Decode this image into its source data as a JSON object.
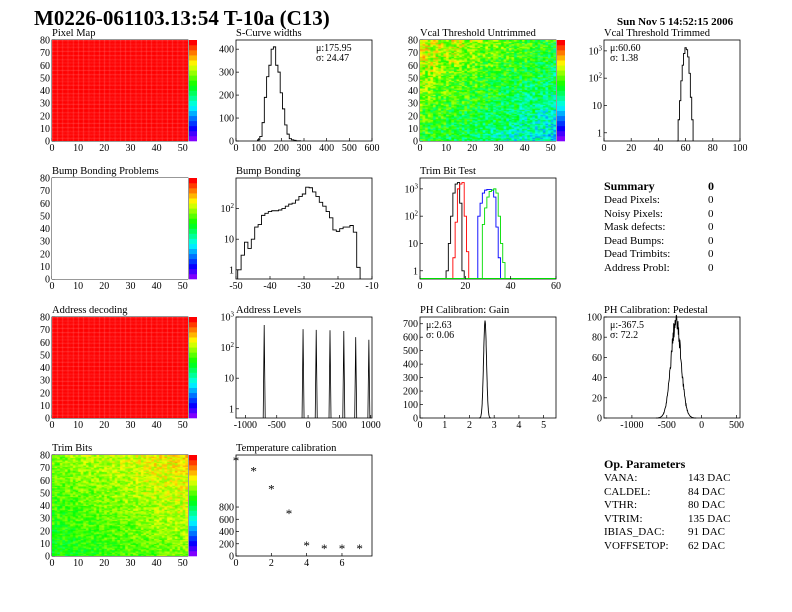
{
  "header": {
    "title": "M0226-061103.13:54 T-10a (C13)",
    "date": "Sun Nov  5 14:52:15 2006"
  },
  "summary": {
    "title": "Summary",
    "total": "0",
    "items": [
      {
        "label": "Dead Pixels:",
        "value": "0"
      },
      {
        "label": "Noisy Pixels:",
        "value": "0"
      },
      {
        "label": "Mask defects:",
        "value": "0"
      },
      {
        "label": "Dead Bumps:",
        "value": "0"
      },
      {
        "label": "Dead Trimbits:",
        "value": "0"
      },
      {
        "label": "Address Probl:",
        "value": "0"
      }
    ]
  },
  "op_parameters": {
    "title": "Op. Parameters",
    "items": [
      {
        "label": "VANA:",
        "value": "143 DAC"
      },
      {
        "label": "CALDEL:",
        "value": "84 DAC"
      },
      {
        "label": "VTHR:",
        "value": "80 DAC"
      },
      {
        "label": "VTRIM:",
        "value": "135 DAC"
      },
      {
        "label": "IBIAS_DAC:",
        "value": "91 DAC"
      },
      {
        "label": "VOFFSETOP:",
        "value": "62 DAC"
      }
    ]
  },
  "chart_data": [
    {
      "id": "pixel_map",
      "type": "heatmap",
      "title": "Pixel Map",
      "xlim": [
        0,
        52
      ],
      "ylim": [
        0,
        80
      ],
      "zlim": [
        0,
        10
      ],
      "pattern": "uniform",
      "mean": 10,
      "xticks": [
        0,
        10,
        20,
        30,
        40,
        50
      ],
      "yticks": [
        0,
        10,
        20,
        30,
        40,
        50,
        60,
        70,
        80
      ],
      "palette": "rainbow"
    },
    {
      "id": "scurve",
      "type": "bar",
      "title": "S-Curve widths",
      "xlim": [
        0,
        600
      ],
      "ylim": [
        0,
        440
      ],
      "stats": [
        "μ:175.95",
        "σ: 24.47"
      ],
      "xticks": [
        0,
        100,
        200,
        300,
        400,
        500,
        600
      ],
      "yticks": [
        0,
        100,
        200,
        300,
        400
      ],
      "binwidth": 10,
      "series": [
        {
          "color": "#000000",
          "x": [
            100,
            110,
            120,
            130,
            140,
            150,
            160,
            170,
            180,
            190,
            200,
            210,
            220,
            230,
            240,
            250,
            260,
            270,
            280
          ],
          "values": [
            5,
            20,
            80,
            190,
            280,
            330,
            400,
            410,
            330,
            300,
            210,
            140,
            70,
            30,
            10,
            5,
            3,
            1,
            1
          ]
        }
      ]
    },
    {
      "id": "vcal_untrimmed",
      "type": "heatmap",
      "title": "Vcal Threshold Untrimmed",
      "xlim": [
        0,
        52
      ],
      "ylim": [
        0,
        80
      ],
      "zlim": [
        80,
        120
      ],
      "pattern": "gradient",
      "mean": 102,
      "xticks": [
        0,
        10,
        20,
        30,
        40,
        50
      ],
      "yticks": [
        0,
        10,
        20,
        30,
        40,
        50,
        60,
        70,
        80
      ],
      "palette": "rainbow"
    },
    {
      "id": "vcal_trimmed",
      "type": "bar",
      "log": true,
      "title": "Vcal Threshold Trimmed",
      "xlim": [
        0,
        100
      ],
      "ylim": [
        0.5,
        2500
      ],
      "stats": [
        "μ:60.60",
        "σ: 1.38"
      ],
      "xticks": [
        0,
        20,
        40,
        60,
        80,
        100
      ],
      "yticks": [
        "1",
        "10",
        "10^2",
        "10^3"
      ],
      "binwidth": 1,
      "series": [
        {
          "color": "#000000",
          "x": [
            54,
            55,
            56,
            57,
            58,
            59,
            60,
            61,
            62,
            63,
            64,
            65
          ],
          "values": [
            0.5,
            3,
            15,
            80,
            300,
            800,
            1300,
            1100,
            600,
            150,
            20,
            3
          ]
        }
      ]
    },
    {
      "id": "bump_problems",
      "type": "heatmap",
      "title": "Bump Bonding Problems",
      "xlim": [
        0,
        52
      ],
      "ylim": [
        0,
        80
      ],
      "zlim": [
        0,
        2
      ],
      "pattern": "empty",
      "xticks": [
        0,
        10,
        20,
        30,
        40,
        50
      ],
      "yticks": [
        0,
        10,
        20,
        30,
        40,
        50,
        60,
        70,
        80
      ],
      "palette": "rainbow"
    },
    {
      "id": "bump_bonding",
      "type": "bar",
      "log": true,
      "title": "Bump Bonding",
      "xlim": [
        -50,
        -10
      ],
      "ylim": [
        0.5,
        1000
      ],
      "xticks": [
        -50,
        -40,
        -30,
        -20,
        -10
      ],
      "yticks": [
        "1",
        "10",
        "10^2"
      ],
      "binwidth": 1,
      "series": [
        {
          "color": "#000000",
          "x": [
            -49,
            -48,
            -47,
            -46,
            -45,
            -44,
            -43,
            -42,
            -41,
            -40,
            -39,
            -38,
            -37,
            -36,
            -35,
            -34,
            -33,
            -32,
            -31,
            -30,
            -29,
            -28,
            -27,
            -26,
            -25,
            -24,
            -23,
            -22,
            -21,
            -20,
            -19,
            -18,
            -17,
            -16,
            -15,
            -14
          ],
          "values": [
            1,
            3,
            8,
            5,
            10,
            25,
            30,
            60,
            70,
            80,
            85,
            85,
            90,
            100,
            120,
            140,
            150,
            190,
            250,
            300,
            500,
            480,
            350,
            250,
            160,
            120,
            80,
            50,
            20,
            18,
            22,
            25,
            25,
            28,
            17,
            1.2
          ]
        }
      ]
    },
    {
      "id": "trim_bit_test",
      "type": "bar",
      "log": true,
      "title": "Trim Bit Test",
      "xlim": [
        0,
        60
      ],
      "ylim": [
        0.5,
        2500
      ],
      "xticks": [
        0,
        20,
        40,
        60
      ],
      "yticks": [
        "1",
        "10",
        "10^2",
        "10^3"
      ],
      "binwidth": 1,
      "series": [
        {
          "color": "#000000",
          "x": [
            12,
            13,
            14,
            15,
            16,
            17,
            18,
            19
          ],
          "values": [
            1,
            10,
            100,
            700,
            1500,
            1700,
            300,
            1
          ]
        },
        {
          "color": "#ff0000",
          "x": [
            15,
            16,
            17,
            18,
            19,
            20,
            21
          ],
          "values": [
            3,
            60,
            1000,
            1500,
            1700,
            100,
            5
          ]
        },
        {
          "color": "#0000ff",
          "x": [
            26,
            27,
            28,
            29,
            30,
            31,
            32,
            33,
            34,
            35
          ],
          "values": [
            100,
            300,
            700,
            900,
            950,
            950,
            900,
            500,
            40,
            3
          ]
        },
        {
          "color": "#00dd00",
          "x": [
            28,
            29,
            30,
            31,
            32,
            33,
            34,
            35,
            36,
            37
          ],
          "values": [
            50,
            200,
            500,
            800,
            900,
            1000,
            700,
            100,
            10,
            2
          ]
        }
      ]
    },
    {
      "id": "address_decoding",
      "type": "heatmap",
      "title": "Address decoding",
      "xlim": [
        0,
        52
      ],
      "ylim": [
        0,
        80
      ],
      "zlim": [
        0,
        1
      ],
      "pattern": "uniform",
      "mean": 1,
      "xticks": [
        0,
        10,
        20,
        30,
        40,
        50
      ],
      "yticks": [
        0,
        10,
        20,
        30,
        40,
        50,
        60,
        70,
        80
      ],
      "palette": "rainbow"
    },
    {
      "id": "address_levels",
      "type": "spikes",
      "log": true,
      "title": "Address Levels",
      "xlim": [
        -1150,
        1020
      ],
      "ylim": [
        0.5,
        1000
      ],
      "xticks": [
        -1000,
        -500,
        0,
        500,
        1000
      ],
      "yticks": [
        "1",
        "10",
        "10^2",
        "10^3"
      ],
      "series": [
        {
          "color": "#000000",
          "x": [
            -700,
            -80,
            130,
            350,
            570,
            760,
            970
          ],
          "values": [
            550,
            400,
            380,
            370,
            350,
            220,
            180
          ]
        }
      ]
    },
    {
      "id": "ph_gain",
      "type": "gauss",
      "title": "PH Calibration: Gain",
      "xlim": [
        0,
        5.5
      ],
      "ylim": [
        0,
        750
      ],
      "stats": [
        "μ:2.63",
        "σ: 0.06"
      ],
      "xticks": [
        0,
        1,
        2,
        3,
        4,
        5
      ],
      "yticks": [
        0,
        100,
        200,
        300,
        400,
        500,
        600,
        700
      ],
      "mean": 2.63,
      "sigma": 0.06,
      "peak": 720
    },
    {
      "id": "ph_pedestal",
      "type": "gauss",
      "title": "PH Calibration: Pedestal",
      "xlim": [
        -1400,
        550
      ],
      "ylim": [
        0,
        100
      ],
      "stats": [
        "μ:-367.5",
        "σ: 72.2"
      ],
      "xticks": [
        -1000,
        -500,
        0,
        500
      ],
      "yticks": [
        0,
        20,
        40,
        60,
        80,
        100
      ],
      "mean": -367.5,
      "sigma": 72.2,
      "peak": 95
    },
    {
      "id": "trim_bits",
      "type": "heatmap",
      "title": "Trim Bits",
      "xlim": [
        0,
        52
      ],
      "ylim": [
        0,
        80
      ],
      "zlim": [
        0,
        16
      ],
      "pattern": "trim",
      "mean": 10.5,
      "xticks": [
        0,
        10,
        20,
        30,
        40,
        50
      ],
      "yticks": [
        0,
        10,
        20,
        30,
        40,
        50,
        60,
        70,
        80
      ],
      "palette": "rainbow"
    },
    {
      "id": "temperature",
      "type": "scatter",
      "title": "Temperature calibration",
      "xlim": [
        0,
        7.7
      ],
      "ylim": [
        0,
        1650
      ],
      "xticks": [
        0,
        2,
        4,
        6
      ],
      "yticks": [
        0,
        200,
        400,
        600,
        800
      ],
      "series": [
        {
          "color": "#000000",
          "x": [
            0,
            1,
            2,
            3,
            4,
            5,
            6,
            7
          ],
          "values": [
            1570,
            1400,
            1100,
            700,
            180,
            130,
            130,
            130
          ]
        }
      ]
    }
  ]
}
